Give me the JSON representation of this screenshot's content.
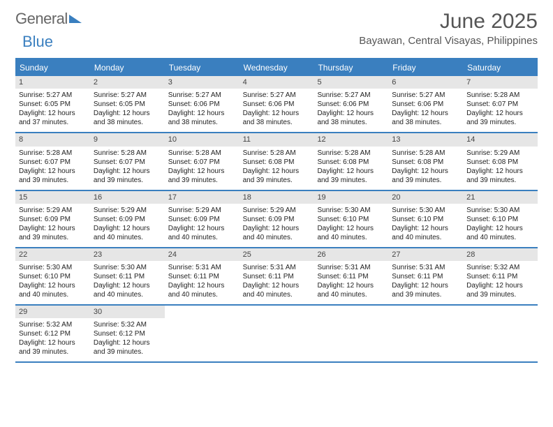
{
  "brand": {
    "part1": "General",
    "part2": "Blue"
  },
  "title": "June 2025",
  "location": "Bayawan, Central Visayas, Philippines",
  "day_header_bg": "#3a7fbf",
  "days_of_week": [
    "Sunday",
    "Monday",
    "Tuesday",
    "Wednesday",
    "Thursday",
    "Friday",
    "Saturday"
  ],
  "labels": {
    "sunrise": "Sunrise:",
    "sunset": "Sunset:",
    "daylight": "Daylight:"
  },
  "weeks": [
    [
      {
        "n": "1",
        "sr": "5:27 AM",
        "ss": "6:05 PM",
        "dl": "12 hours and 37 minutes."
      },
      {
        "n": "2",
        "sr": "5:27 AM",
        "ss": "6:05 PM",
        "dl": "12 hours and 38 minutes."
      },
      {
        "n": "3",
        "sr": "5:27 AM",
        "ss": "6:06 PM",
        "dl": "12 hours and 38 minutes."
      },
      {
        "n": "4",
        "sr": "5:27 AM",
        "ss": "6:06 PM",
        "dl": "12 hours and 38 minutes."
      },
      {
        "n": "5",
        "sr": "5:27 AM",
        "ss": "6:06 PM",
        "dl": "12 hours and 38 minutes."
      },
      {
        "n": "6",
        "sr": "5:27 AM",
        "ss": "6:06 PM",
        "dl": "12 hours and 38 minutes."
      },
      {
        "n": "7",
        "sr": "5:28 AM",
        "ss": "6:07 PM",
        "dl": "12 hours and 39 minutes."
      }
    ],
    [
      {
        "n": "8",
        "sr": "5:28 AM",
        "ss": "6:07 PM",
        "dl": "12 hours and 39 minutes."
      },
      {
        "n": "9",
        "sr": "5:28 AM",
        "ss": "6:07 PM",
        "dl": "12 hours and 39 minutes."
      },
      {
        "n": "10",
        "sr": "5:28 AM",
        "ss": "6:07 PM",
        "dl": "12 hours and 39 minutes."
      },
      {
        "n": "11",
        "sr": "5:28 AM",
        "ss": "6:08 PM",
        "dl": "12 hours and 39 minutes."
      },
      {
        "n": "12",
        "sr": "5:28 AM",
        "ss": "6:08 PM",
        "dl": "12 hours and 39 minutes."
      },
      {
        "n": "13",
        "sr": "5:28 AM",
        "ss": "6:08 PM",
        "dl": "12 hours and 39 minutes."
      },
      {
        "n": "14",
        "sr": "5:29 AM",
        "ss": "6:08 PM",
        "dl": "12 hours and 39 minutes."
      }
    ],
    [
      {
        "n": "15",
        "sr": "5:29 AM",
        "ss": "6:09 PM",
        "dl": "12 hours and 39 minutes."
      },
      {
        "n": "16",
        "sr": "5:29 AM",
        "ss": "6:09 PM",
        "dl": "12 hours and 40 minutes."
      },
      {
        "n": "17",
        "sr": "5:29 AM",
        "ss": "6:09 PM",
        "dl": "12 hours and 40 minutes."
      },
      {
        "n": "18",
        "sr": "5:29 AM",
        "ss": "6:09 PM",
        "dl": "12 hours and 40 minutes."
      },
      {
        "n": "19",
        "sr": "5:30 AM",
        "ss": "6:10 PM",
        "dl": "12 hours and 40 minutes."
      },
      {
        "n": "20",
        "sr": "5:30 AM",
        "ss": "6:10 PM",
        "dl": "12 hours and 40 minutes."
      },
      {
        "n": "21",
        "sr": "5:30 AM",
        "ss": "6:10 PM",
        "dl": "12 hours and 40 minutes."
      }
    ],
    [
      {
        "n": "22",
        "sr": "5:30 AM",
        "ss": "6:10 PM",
        "dl": "12 hours and 40 minutes."
      },
      {
        "n": "23",
        "sr": "5:30 AM",
        "ss": "6:11 PM",
        "dl": "12 hours and 40 minutes."
      },
      {
        "n": "24",
        "sr": "5:31 AM",
        "ss": "6:11 PM",
        "dl": "12 hours and 40 minutes."
      },
      {
        "n": "25",
        "sr": "5:31 AM",
        "ss": "6:11 PM",
        "dl": "12 hours and 40 minutes."
      },
      {
        "n": "26",
        "sr": "5:31 AM",
        "ss": "6:11 PM",
        "dl": "12 hours and 40 minutes."
      },
      {
        "n": "27",
        "sr": "5:31 AM",
        "ss": "6:11 PM",
        "dl": "12 hours and 39 minutes."
      },
      {
        "n": "28",
        "sr": "5:32 AM",
        "ss": "6:11 PM",
        "dl": "12 hours and 39 minutes."
      }
    ],
    [
      {
        "n": "29",
        "sr": "5:32 AM",
        "ss": "6:12 PM",
        "dl": "12 hours and 39 minutes."
      },
      {
        "n": "30",
        "sr": "5:32 AM",
        "ss": "6:12 PM",
        "dl": "12 hours and 39 minutes."
      },
      null,
      null,
      null,
      null,
      null
    ]
  ]
}
